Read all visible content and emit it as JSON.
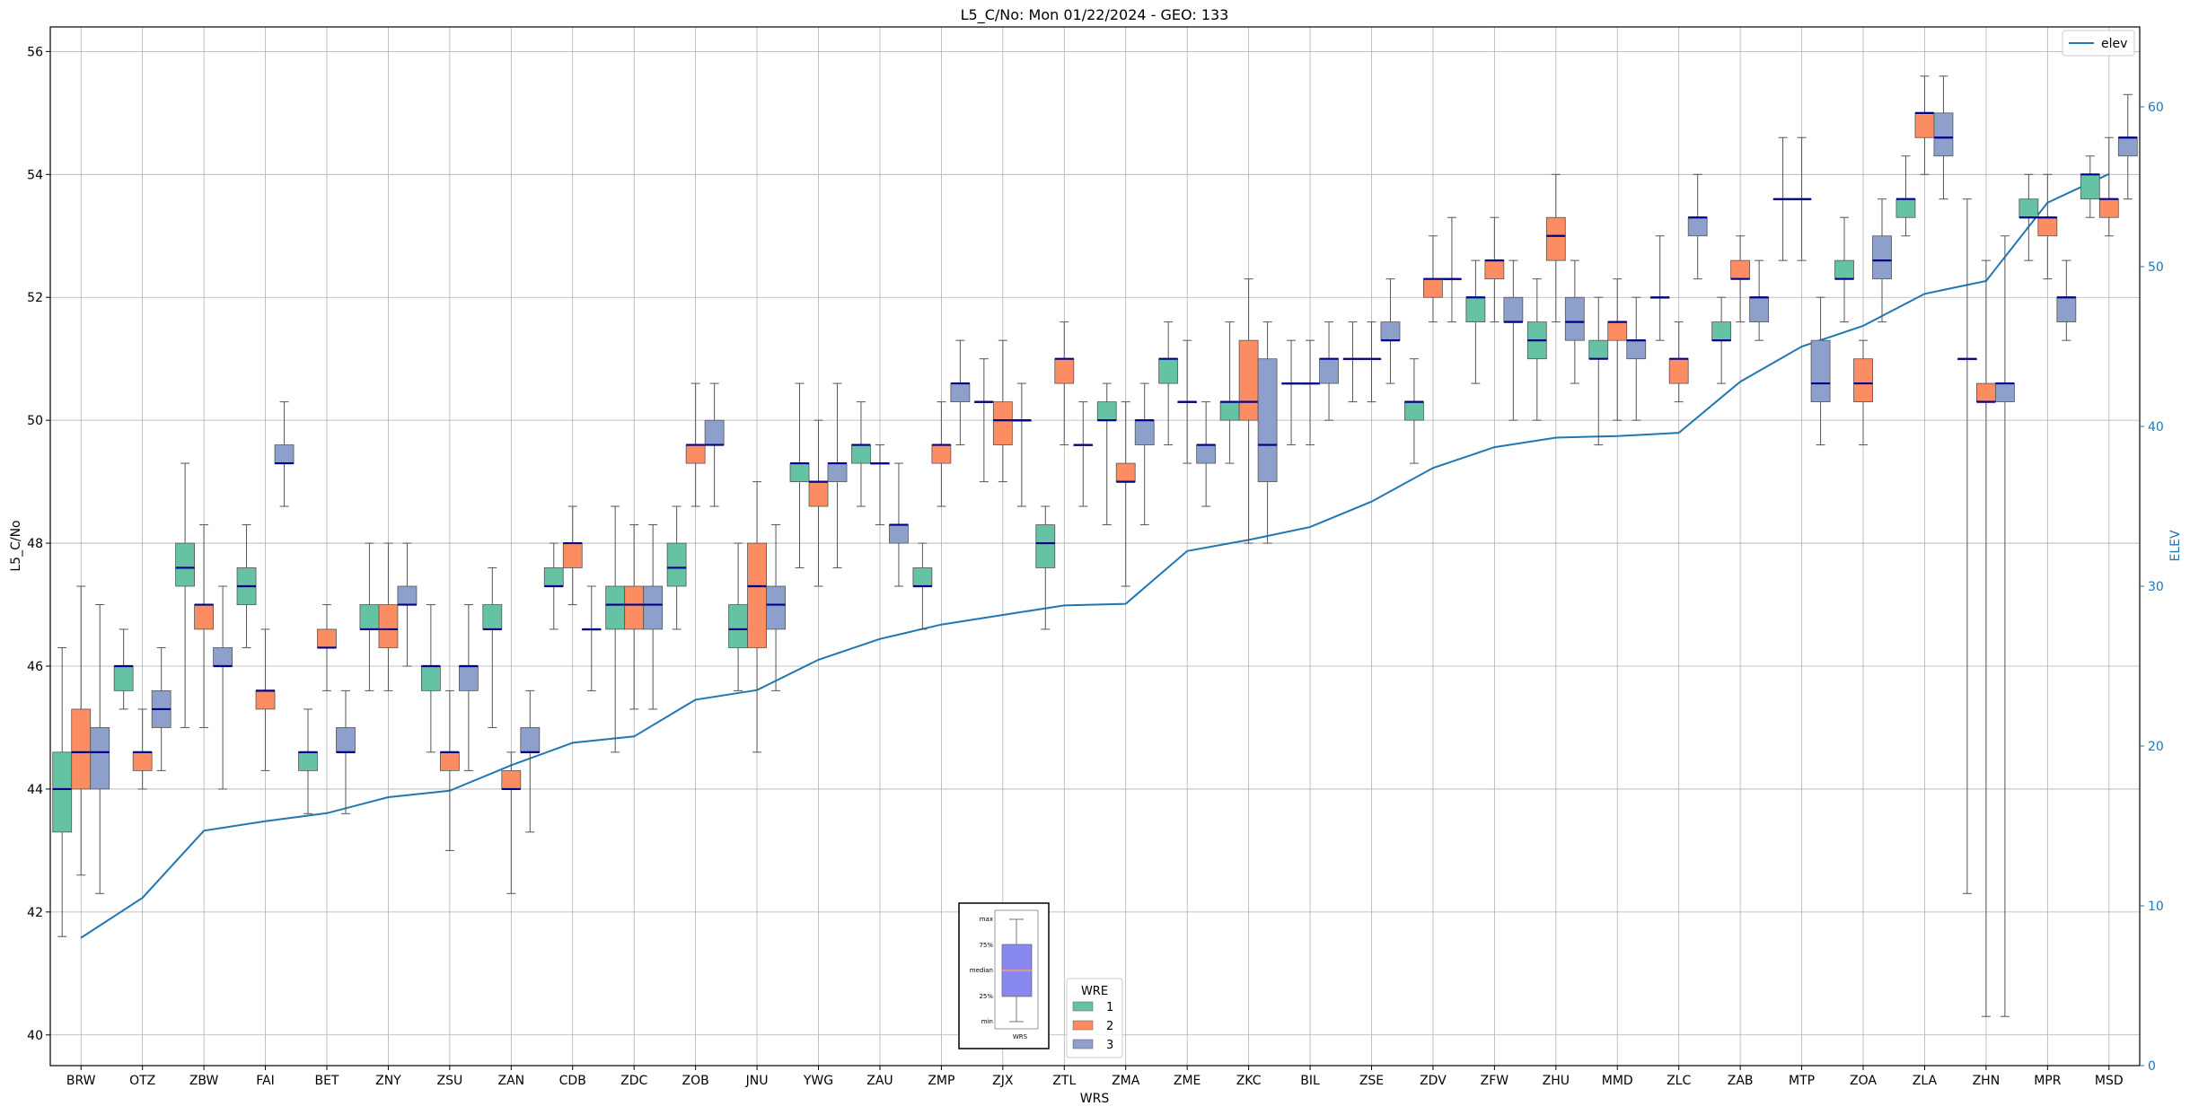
{
  "chart_data": {
    "type": "boxplot",
    "title": "L5_C/No: Mon 01/22/2024 - GEO: 133",
    "xlabel": "WRS",
    "ylabel": "L5_C/No",
    "y2label": "ELEV",
    "ylim": [
      39.5,
      56.4
    ],
    "y2lim": [
      0,
      65
    ],
    "yticks": [
      40,
      42,
      44,
      46,
      48,
      50,
      52,
      54,
      56
    ],
    "y2ticks": [
      0,
      10,
      20,
      30,
      40,
      50,
      60
    ],
    "grid": true,
    "categories": [
      "BRW",
      "OTZ",
      "ZBW",
      "FAI",
      "BET",
      "ZNY",
      "ZSU",
      "ZAN",
      "CDB",
      "ZDC",
      "ZOB",
      "JNU",
      "YWG",
      "ZAU",
      "ZMP",
      "ZJX",
      "ZTL",
      "ZMA",
      "ZME",
      "ZKC",
      "BIL",
      "ZSE",
      "ZDV",
      "ZFW",
      "ZHU",
      "MMD",
      "ZLC",
      "ZAB",
      "MTP",
      "ZOA",
      "ZLA",
      "ZHN",
      "MPR",
      "MSD"
    ],
    "series": [
      {
        "name": "1",
        "color": "#66c2a5",
        "boxes": [
          [
            41.6,
            43.3,
            44.0,
            44.6,
            46.3
          ],
          [
            45.3,
            45.6,
            46.0,
            46.0,
            46.6
          ],
          [
            45.0,
            47.3,
            47.6,
            48.0,
            49.3
          ],
          [
            46.3,
            47.0,
            47.3,
            47.6,
            48.3
          ],
          [
            43.6,
            44.3,
            44.6,
            44.6,
            45.3
          ],
          [
            45.6,
            46.6,
            46.6,
            47.0,
            48.0
          ],
          [
            44.6,
            45.6,
            46.0,
            46.0,
            47.0
          ],
          [
            45.0,
            46.6,
            46.6,
            47.0,
            47.6
          ],
          [
            46.6,
            47.3,
            47.3,
            47.6,
            48.0
          ],
          [
            44.6,
            46.6,
            47.0,
            47.3,
            48.6
          ],
          [
            46.6,
            47.3,
            47.6,
            48.0,
            48.6
          ],
          [
            45.6,
            46.3,
            46.6,
            47.0,
            48.0
          ],
          [
            47.6,
            49.0,
            49.3,
            49.3,
            50.6
          ],
          [
            48.6,
            49.3,
            49.6,
            49.6,
            50.3
          ],
          [
            46.6,
            47.3,
            47.3,
            47.6,
            48.0
          ],
          [
            49.0,
            50.3,
            50.3,
            50.3,
            51.0
          ],
          [
            46.6,
            47.6,
            48.0,
            48.3,
            48.6
          ],
          [
            48.3,
            50.0,
            50.0,
            50.3,
            50.6
          ],
          [
            49.6,
            50.6,
            51.0,
            51.0,
            51.6
          ],
          [
            49.3,
            50.0,
            50.3,
            50.3,
            51.6
          ],
          [
            49.6,
            50.6,
            50.6,
            50.6,
            51.3
          ],
          [
            50.3,
            51.0,
            51.0,
            51.0,
            51.6
          ],
          [
            49.3,
            50.0,
            50.3,
            50.3,
            51.0
          ],
          [
            50.6,
            51.6,
            52.0,
            52.0,
            52.6
          ],
          [
            50.0,
            51.0,
            51.3,
            51.6,
            52.3
          ],
          [
            49.6,
            51.0,
            51.0,
            51.3,
            52.0
          ],
          [
            51.3,
            52.0,
            52.0,
            52.0,
            53.0
          ],
          [
            50.6,
            51.3,
            51.3,
            51.6,
            52.0
          ],
          [
            52.6,
            53.6,
            53.6,
            53.6,
            54.6
          ],
          [
            51.6,
            52.3,
            52.3,
            52.6,
            53.3
          ],
          [
            53.0,
            53.3,
            53.6,
            53.6,
            54.3
          ],
          [
            42.3,
            51.0,
            51.0,
            51.0,
            53.6
          ],
          [
            52.6,
            53.3,
            53.3,
            53.6,
            54.0
          ],
          [
            53.3,
            53.6,
            54.0,
            54.0,
            54.3
          ]
        ]
      },
      {
        "name": "2",
        "color": "#fc8d62",
        "boxes": [
          [
            42.6,
            44.0,
            44.6,
            45.3,
            47.3
          ],
          [
            44.0,
            44.3,
            44.6,
            44.6,
            45.3
          ],
          [
            45.0,
            46.6,
            47.0,
            47.0,
            48.3
          ],
          [
            44.3,
            45.3,
            45.6,
            45.6,
            46.6
          ],
          [
            45.6,
            46.3,
            46.3,
            46.6,
            47.0
          ],
          [
            45.6,
            46.3,
            46.6,
            47.0,
            48.0
          ],
          [
            43.0,
            44.3,
            44.6,
            44.6,
            45.6
          ],
          [
            42.3,
            44.0,
            44.0,
            44.3,
            44.6
          ],
          [
            47.0,
            47.6,
            48.0,
            48.0,
            48.6
          ],
          [
            45.3,
            46.6,
            47.0,
            47.3,
            48.3
          ],
          [
            48.6,
            49.3,
            49.6,
            49.6,
            50.6
          ],
          [
            44.6,
            46.3,
            47.3,
            48.0,
            49.0
          ],
          [
            47.3,
            48.6,
            49.0,
            49.0,
            50.0
          ],
          [
            48.3,
            49.3,
            49.3,
            49.3,
            49.6
          ],
          [
            48.6,
            49.3,
            49.6,
            49.6,
            50.3
          ],
          [
            49.0,
            49.6,
            50.0,
            50.3,
            51.3
          ],
          [
            49.6,
            50.6,
            51.0,
            51.0,
            51.6
          ],
          [
            47.3,
            49.0,
            49.0,
            49.3,
            50.3
          ],
          [
            49.3,
            50.3,
            50.3,
            50.3,
            51.3
          ],
          [
            48.0,
            50.0,
            50.3,
            51.3,
            52.3
          ],
          [
            49.6,
            50.6,
            50.6,
            50.6,
            51.3
          ],
          [
            50.3,
            51.0,
            51.0,
            51.0,
            51.6
          ],
          [
            51.6,
            52.0,
            52.3,
            52.3,
            53.0
          ],
          [
            51.6,
            52.3,
            52.6,
            52.6,
            53.3
          ],
          [
            51.6,
            52.6,
            53.0,
            53.3,
            54.0
          ],
          [
            50.0,
            51.3,
            51.6,
            51.6,
            52.3
          ],
          [
            50.3,
            50.6,
            51.0,
            51.0,
            51.6
          ],
          [
            51.6,
            52.3,
            52.3,
            52.6,
            53.0
          ],
          [
            52.6,
            53.6,
            53.6,
            53.6,
            54.6
          ],
          [
            49.6,
            50.3,
            50.6,
            51.0,
            51.3
          ],
          [
            54.0,
            54.6,
            55.0,
            55.0,
            55.6
          ],
          [
            40.3,
            50.3,
            50.3,
            50.6,
            52.6
          ],
          [
            52.3,
            53.0,
            53.3,
            53.3,
            54.0
          ],
          [
            53.0,
            53.3,
            53.6,
            53.6,
            54.6
          ]
        ]
      },
      {
        "name": "3",
        "color": "#8da0cb",
        "boxes": [
          [
            42.3,
            44.0,
            44.6,
            45.0,
            47.0
          ],
          [
            44.3,
            45.0,
            45.3,
            45.6,
            46.3
          ],
          [
            44.0,
            46.0,
            46.0,
            46.3,
            47.3
          ],
          [
            48.6,
            49.3,
            49.3,
            49.6,
            50.3
          ],
          [
            43.6,
            44.6,
            44.6,
            45.0,
            45.6
          ],
          [
            46.0,
            47.0,
            47.0,
            47.3,
            48.0
          ],
          [
            44.3,
            45.6,
            46.0,
            46.0,
            47.0
          ],
          [
            43.3,
            44.6,
            44.6,
            45.0,
            45.6
          ],
          [
            45.6,
            46.6,
            46.6,
            46.6,
            47.3
          ],
          [
            45.3,
            46.6,
            47.0,
            47.3,
            48.3
          ],
          [
            48.6,
            49.6,
            49.6,
            50.0,
            50.6
          ],
          [
            45.6,
            46.6,
            47.0,
            47.3,
            48.3
          ],
          [
            47.6,
            49.0,
            49.3,
            49.3,
            50.6
          ],
          [
            47.3,
            48.0,
            48.3,
            48.3,
            49.3
          ],
          [
            49.6,
            50.3,
            50.6,
            50.6,
            51.3
          ],
          [
            48.6,
            50.0,
            50.0,
            50.0,
            50.6
          ],
          [
            48.6,
            49.6,
            49.6,
            49.6,
            50.3
          ],
          [
            48.3,
            49.6,
            50.0,
            50.0,
            50.6
          ],
          [
            48.6,
            49.3,
            49.6,
            49.6,
            50.3
          ],
          [
            48.0,
            49.0,
            49.6,
            51.0,
            51.6
          ],
          [
            50.0,
            50.6,
            51.0,
            51.0,
            51.6
          ],
          [
            50.6,
            51.3,
            51.3,
            51.6,
            52.3
          ],
          [
            51.6,
            52.3,
            52.3,
            52.3,
            53.3
          ],
          [
            50.0,
            51.6,
            51.6,
            52.0,
            52.6
          ],
          [
            50.6,
            51.3,
            51.6,
            52.0,
            52.6
          ],
          [
            50.0,
            51.0,
            51.3,
            51.3,
            52.0
          ],
          [
            52.3,
            53.0,
            53.3,
            53.3,
            54.0
          ],
          [
            51.3,
            51.6,
            52.0,
            52.0,
            52.6
          ],
          [
            49.6,
            50.3,
            50.6,
            51.3,
            52.0
          ],
          [
            51.6,
            52.3,
            52.6,
            53.0,
            53.6
          ],
          [
            53.6,
            54.3,
            54.6,
            55.0,
            55.6
          ],
          [
            40.3,
            50.3,
            50.6,
            50.6,
            53.0
          ],
          [
            51.3,
            51.6,
            52.0,
            52.0,
            52.6
          ],
          [
            53.6,
            54.3,
            54.6,
            54.6,
            55.3
          ]
        ]
      }
    ],
    "elev_line": {
      "name": "elev",
      "color": "#1f77b4",
      "values": [
        8,
        10.5,
        14.7,
        15.3,
        15.8,
        16.8,
        17.2,
        18.8,
        20.2,
        20.6,
        22.9,
        23.5,
        25.4,
        26.7,
        27.6,
        28.2,
        28.8,
        28.9,
        32.2,
        32.9,
        33.7,
        35.3,
        37.4,
        38.7,
        39.3,
        39.4,
        39.6,
        42.8,
        45,
        46.3,
        48.3,
        49.1,
        54,
        55.8
      ]
    },
    "legend_main": {
      "title": "WRE",
      "entries": [
        "1",
        "2",
        "3"
      ],
      "loc": "lower-center"
    },
    "legend_elev": {
      "entries": [
        "elev"
      ],
      "loc": "upper-right"
    },
    "inset_key": {
      "labels": [
        "max",
        "75%",
        "median",
        "25%",
        "min"
      ],
      "xlabel": "WRS",
      "box_color": "#8888ee",
      "median_color": "#f0a078"
    }
  }
}
